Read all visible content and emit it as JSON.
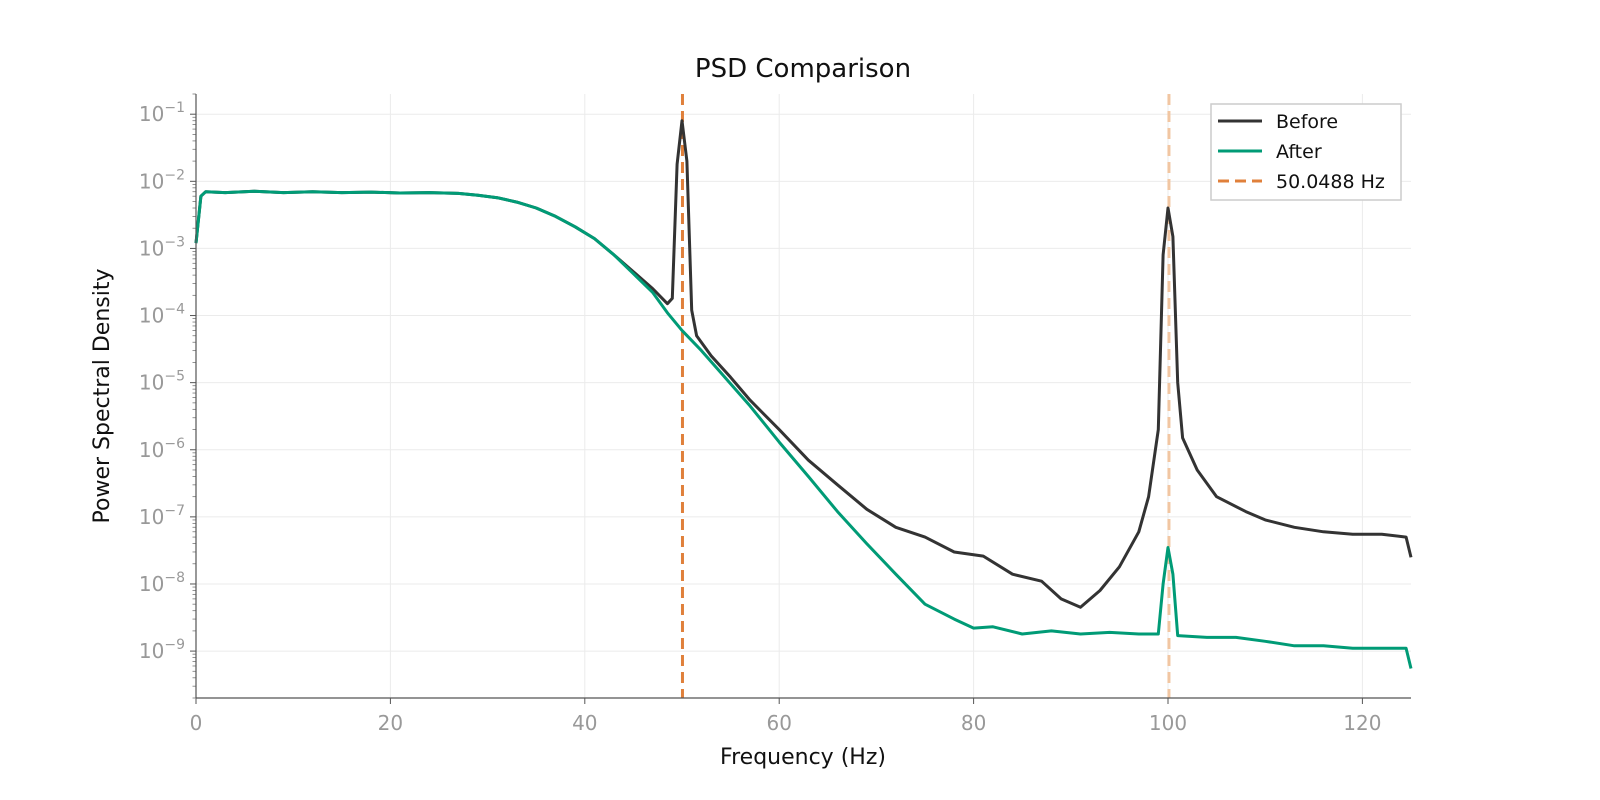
{
  "chart_data": {
    "type": "line",
    "title": "PSD Comparison",
    "xlabel": "Frequency (Hz)",
    "ylabel": "Power Spectral Density",
    "xlim": [
      0,
      125
    ],
    "ylim": [
      2e-10,
      0.2
    ],
    "yscale": "log",
    "grid": true,
    "legend_position": "top-right",
    "x_ticks": [
      0,
      20,
      40,
      60,
      80,
      100,
      120
    ],
    "x_tick_labels": [
      "0",
      "20",
      "40",
      "60",
      "80",
      "100",
      "120"
    ],
    "y_ticks": [
      -9,
      -8,
      -7,
      -6,
      -5,
      -4,
      -3,
      -2,
      -1
    ],
    "y_tick_labels": [
      "10−9",
      "10−8",
      "10−7",
      "10−6",
      "10−5",
      "10−4",
      "10−3",
      "10−2",
      "10−1"
    ],
    "series": [
      {
        "name": "Before",
        "color": "#333333",
        "style": "solid",
        "points": [
          [
            0,
            0.0012
          ],
          [
            0.5,
            0.006
          ],
          [
            1,
            0.007
          ],
          [
            3,
            0.0068
          ],
          [
            6,
            0.0071
          ],
          [
            9,
            0.0068
          ],
          [
            12,
            0.007
          ],
          [
            15,
            0.0068
          ],
          [
            18,
            0.0069
          ],
          [
            21,
            0.0067
          ],
          [
            24,
            0.0068
          ],
          [
            27,
            0.0066
          ],
          [
            29,
            0.0062
          ],
          [
            31,
            0.0057
          ],
          [
            33,
            0.0049
          ],
          [
            35,
            0.004
          ],
          [
            37,
            0.003
          ],
          [
            39,
            0.0021
          ],
          [
            41,
            0.0014
          ],
          [
            43,
            0.0008
          ],
          [
            45,
            0.00045
          ],
          [
            47,
            0.00025
          ],
          [
            48.5,
            0.00015
          ],
          [
            49,
            0.00018
          ],
          [
            49.5,
            0.018
          ],
          [
            50,
            0.08
          ],
          [
            50.5,
            0.02
          ],
          [
            51,
            0.00012
          ],
          [
            51.5,
            5e-05
          ],
          [
            53,
            2.5e-05
          ],
          [
            55,
            1.2e-05
          ],
          [
            57,
            5.5e-06
          ],
          [
            60,
            2e-06
          ],
          [
            63,
            7e-07
          ],
          [
            66,
            3e-07
          ],
          [
            69,
            1.3e-07
          ],
          [
            72,
            7e-08
          ],
          [
            75,
            5e-08
          ],
          [
            78,
            3e-08
          ],
          [
            81,
            2.6e-08
          ],
          [
            84,
            1.4e-08
          ],
          [
            87,
            1.1e-08
          ],
          [
            89,
            6e-09
          ],
          [
            91,
            4.5e-09
          ],
          [
            93,
            8e-09
          ],
          [
            95,
            1.8e-08
          ],
          [
            97,
            6e-08
          ],
          [
            98,
            2e-07
          ],
          [
            99,
            2e-06
          ],
          [
            99.5,
            0.0008
          ],
          [
            100,
            0.004
          ],
          [
            100.5,
            0.0015
          ],
          [
            101,
            1e-05
          ],
          [
            101.5,
            1.5e-06
          ],
          [
            103,
            5e-07
          ],
          [
            105,
            2e-07
          ],
          [
            108,
            1.2e-07
          ],
          [
            110,
            9e-08
          ],
          [
            113,
            7e-08
          ],
          [
            116,
            6e-08
          ],
          [
            119,
            5.5e-08
          ],
          [
            122,
            5.5e-08
          ],
          [
            124.5,
            5e-08
          ],
          [
            125,
            2.5e-08
          ]
        ]
      },
      {
        "name": "After",
        "color": "#009b76",
        "style": "solid",
        "points": [
          [
            0,
            0.0012
          ],
          [
            0.5,
            0.006
          ],
          [
            1,
            0.007
          ],
          [
            3,
            0.0068
          ],
          [
            6,
            0.0071
          ],
          [
            9,
            0.0068
          ],
          [
            12,
            0.007
          ],
          [
            15,
            0.0068
          ],
          [
            18,
            0.0069
          ],
          [
            21,
            0.0067
          ],
          [
            24,
            0.0068
          ],
          [
            27,
            0.0066
          ],
          [
            29,
            0.0062
          ],
          [
            31,
            0.0057
          ],
          [
            33,
            0.0049
          ],
          [
            35,
            0.004
          ],
          [
            37,
            0.003
          ],
          [
            39,
            0.0021
          ],
          [
            41,
            0.0014
          ],
          [
            43,
            0.0008
          ],
          [
            45,
            0.00042
          ],
          [
            47,
            0.00022
          ],
          [
            48.5,
            0.00011
          ],
          [
            50,
            6e-05
          ],
          [
            52,
            3e-05
          ],
          [
            54,
            1.4e-05
          ],
          [
            57,
            4.5e-06
          ],
          [
            60,
            1.3e-06
          ],
          [
            63,
            4e-07
          ],
          [
            66,
            1.2e-07
          ],
          [
            69,
            4e-08
          ],
          [
            72,
            1.4e-08
          ],
          [
            75,
            5e-09
          ],
          [
            78,
            3e-09
          ],
          [
            80,
            2.2e-09
          ],
          [
            82,
            2.3e-09
          ],
          [
            85,
            1.8e-09
          ],
          [
            88,
            2e-09
          ],
          [
            91,
            1.8e-09
          ],
          [
            94,
            1.9e-09
          ],
          [
            97,
            1.8e-09
          ],
          [
            99,
            1.8e-09
          ],
          [
            99.5,
            1e-08
          ],
          [
            100,
            3.5e-08
          ],
          [
            100.5,
            1.4e-08
          ],
          [
            101,
            1.7e-09
          ],
          [
            104,
            1.6e-09
          ],
          [
            107,
            1.6e-09
          ],
          [
            110,
            1.4e-09
          ],
          [
            113,
            1.2e-09
          ],
          [
            116,
            1.2e-09
          ],
          [
            119,
            1.1e-09
          ],
          [
            122,
            1.1e-09
          ],
          [
            124.5,
            1.1e-09
          ],
          [
            125,
            5.5e-10
          ]
        ]
      },
      {
        "name": "50.0488 Hz",
        "color": "#e0803b",
        "style": "dashed",
        "x": 50.0488
      }
    ],
    "annotations": [
      {
        "type": "vline",
        "x": 100.0976,
        "color": "#f1c6a2",
        "style": "dashed"
      }
    ]
  }
}
